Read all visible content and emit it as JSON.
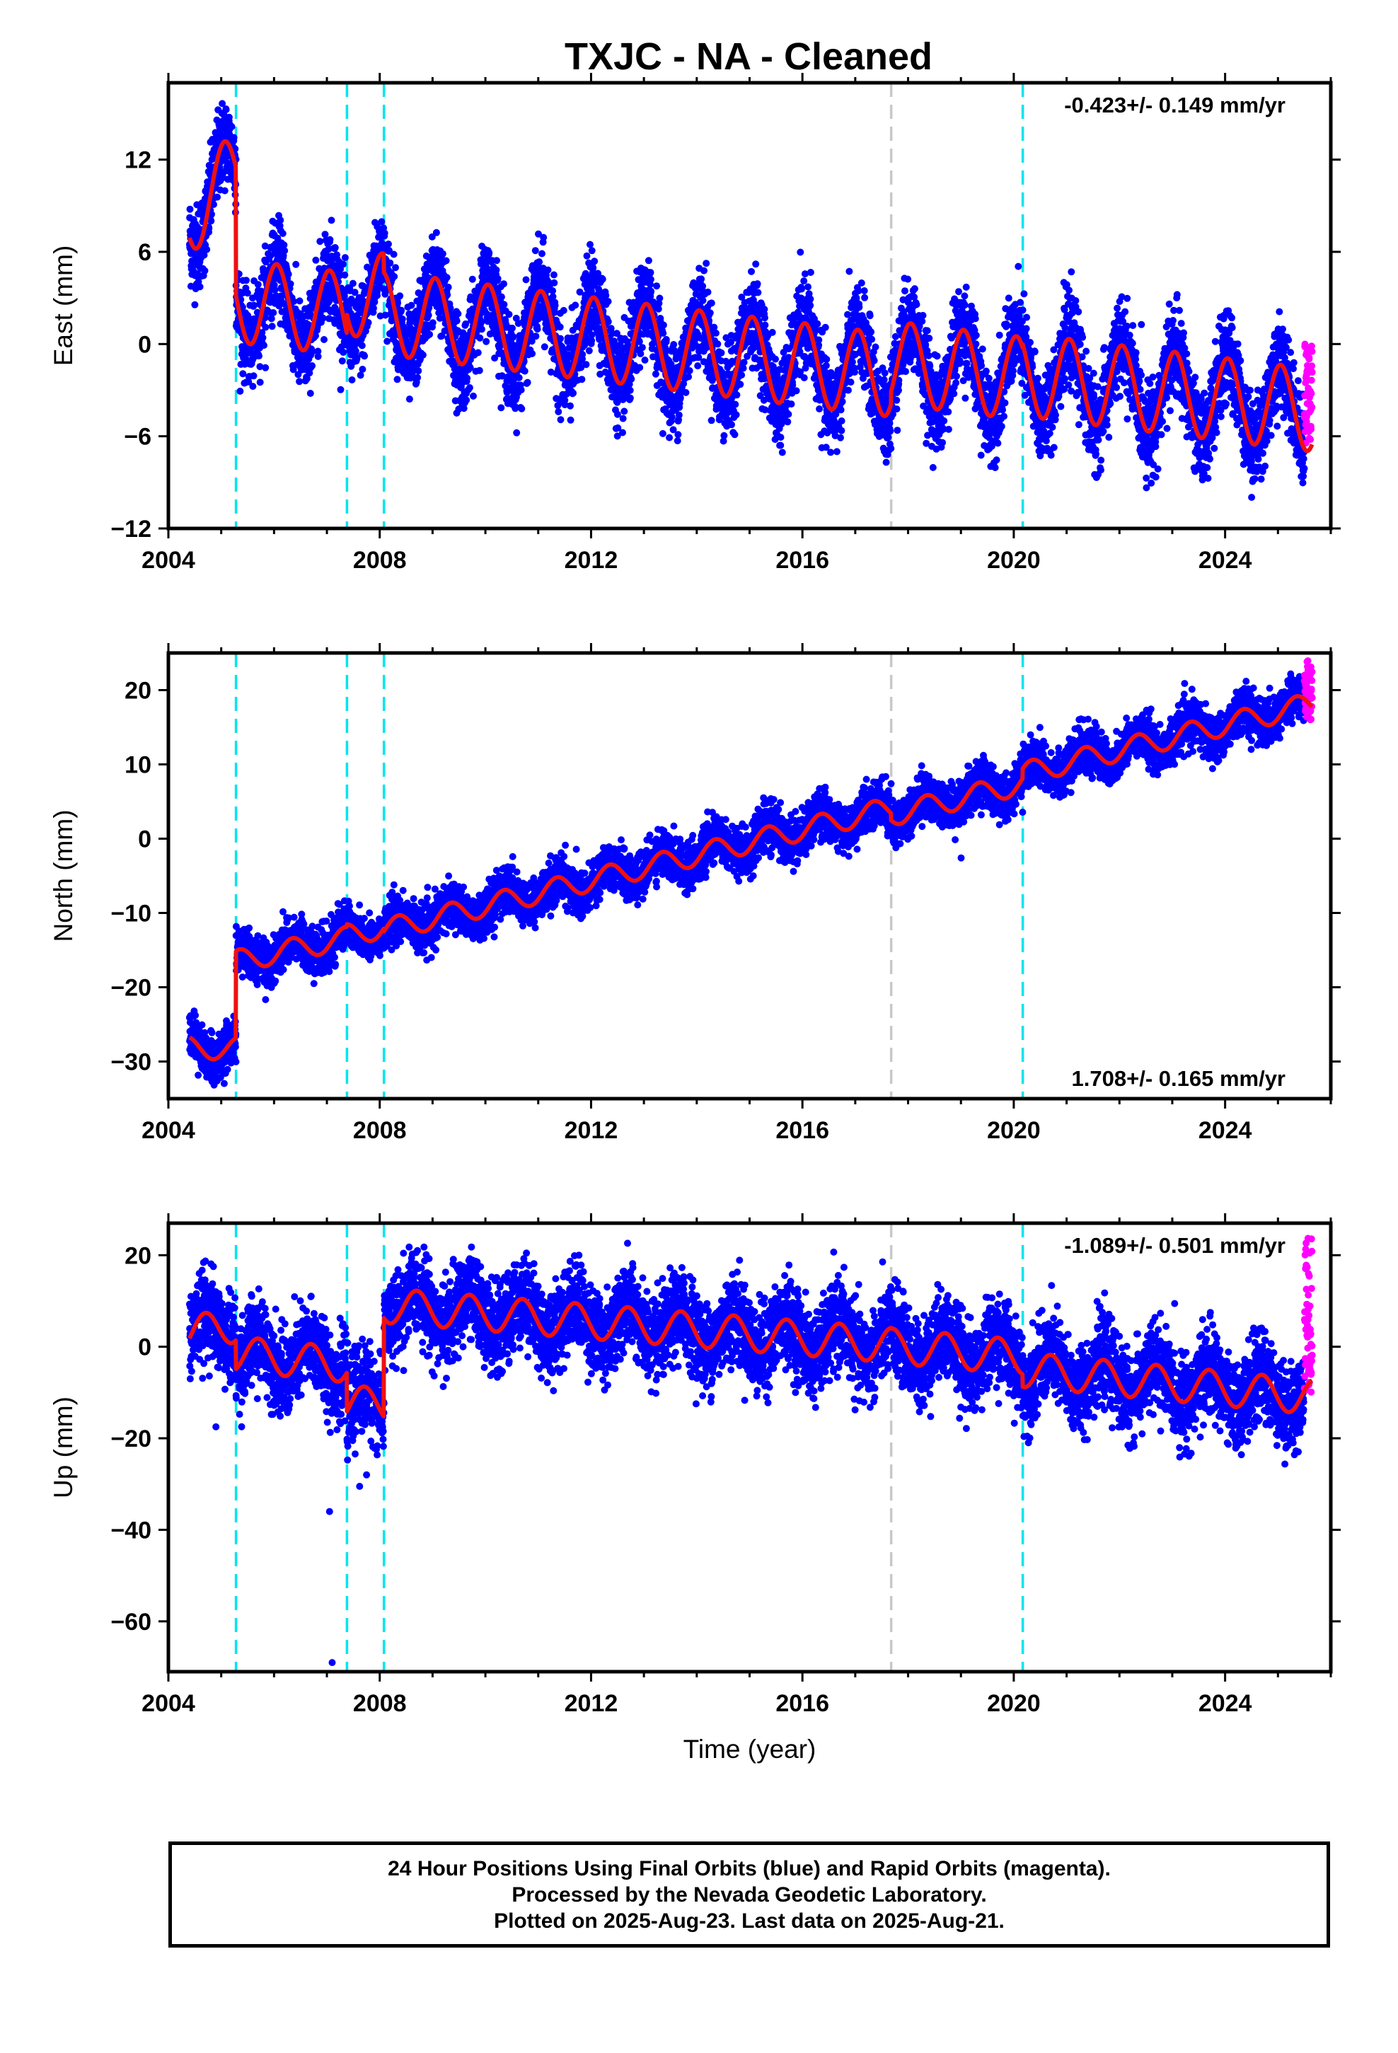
{
  "title": "TXJC  - NA - Cleaned",
  "colors": {
    "final_orbits": "#0000ff",
    "rapid_orbits": "#ff00ff",
    "model": "#ee1111",
    "offset_equipment": "#00e5ee",
    "offset_other": "#c8c8c8"
  },
  "chart_data": [
    {
      "type": "scatter",
      "component": "East",
      "ylabel": "East (mm)",
      "xlabel": "",
      "xlim": [
        2004.0,
        2026.0
      ],
      "ylim": [
        -12,
        17
      ],
      "xticks": [
        2004,
        2008,
        2012,
        2016,
        2020,
        2024
      ],
      "yticks": [
        -12,
        -6,
        0,
        6,
        12
      ],
      "rate_text": "-0.423+/- 0.149 mm/yr",
      "rate_position": "top-right",
      "offset_lines": [
        {
          "year": 2005.28,
          "kind": "equipment"
        },
        {
          "year": 2007.38,
          "kind": "equipment"
        },
        {
          "year": 2008.08,
          "kind": "equipment"
        },
        {
          "year": 2017.68,
          "kind": "other"
        },
        {
          "year": 2020.17,
          "kind": "equipment"
        }
      ],
      "model_trend": [
        {
          "start": 2004.4,
          "end": 2005.28,
          "value_at_start": 8.5,
          "rate": 3.0
        },
        {
          "start": 2005.28,
          "end": 2007.38,
          "value_at_start": 2.8,
          "rate": -0.4
        },
        {
          "start": 2007.38,
          "end": 2008.08,
          "value_at_start": 3.2,
          "rate": 0.0
        },
        {
          "start": 2008.08,
          "end": 2017.68,
          "value_at_start": 2.0,
          "rate": -0.42
        },
        {
          "start": 2017.68,
          "end": 2020.17,
          "value_at_start": -1.2,
          "rate": -0.42
        },
        {
          "start": 2020.17,
          "end": 2025.65,
          "value_at_start": -2.0,
          "rate": -0.42
        }
      ],
      "annual_amplitude": 2.7,
      "annual_peak_phase": 0.05,
      "scatter_sd": 1.4,
      "rapid_segment": {
        "start": 2025.5,
        "end": 2025.65,
        "ymin": -6.5,
        "ymax": 0
      }
    },
    {
      "type": "scatter",
      "component": "North",
      "ylabel": "North (mm)",
      "xlabel": "",
      "xlim": [
        2004.0,
        2026.0
      ],
      "ylim": [
        -35,
        25
      ],
      "xticks": [
        2004,
        2008,
        2012,
        2016,
        2020,
        2024
      ],
      "yticks": [
        -30,
        -20,
        -10,
        0,
        10,
        20
      ],
      "rate_text": "1.708+/- 0.165 mm/yr",
      "rate_position": "bottom-right",
      "offset_lines": [
        {
          "year": 2005.28,
          "kind": "equipment"
        },
        {
          "year": 2007.38,
          "kind": "equipment"
        },
        {
          "year": 2008.08,
          "kind": "equipment"
        },
        {
          "year": 2017.68,
          "kind": "other"
        },
        {
          "year": 2020.17,
          "kind": "equipment"
        }
      ],
      "model_trend": [
        {
          "start": 2004.4,
          "end": 2005.28,
          "value_at_start": -28.2,
          "rate": 0.0
        },
        {
          "start": 2005.28,
          "end": 2007.38,
          "value_at_start": -16.5,
          "rate": 1.5
        },
        {
          "start": 2007.38,
          "end": 2008.08,
          "value_at_start": -13.0,
          "rate": 1.6
        },
        {
          "start": 2008.08,
          "end": 2017.68,
          "value_at_start": -12.3,
          "rate": 1.71
        },
        {
          "start": 2017.68,
          "end": 2020.17,
          "value_at_start": 3.2,
          "rate": 1.71
        },
        {
          "start": 2020.17,
          "end": 2025.65,
          "value_at_start": 8.8,
          "rate": 1.71
        }
      ],
      "annual_amplitude": 1.5,
      "annual_peak_phase": 0.35,
      "scatter_sd": 1.5,
      "rapid_segment": {
        "start": 2025.5,
        "end": 2025.65,
        "ymin": 16,
        "ymax": 24
      }
    },
    {
      "type": "scatter",
      "component": "Up",
      "ylabel": "Up (mm)",
      "xlabel": "Time (year)",
      "xlim": [
        2004.0,
        2026.0
      ],
      "ylim": [
        -71,
        27
      ],
      "xticks": [
        2004,
        2008,
        2012,
        2016,
        2020,
        2024
      ],
      "yticks": [
        -60,
        -40,
        -20,
        0,
        20
      ],
      "rate_text": "-1.089+/- 0.501 mm/yr",
      "rate_position": "top-right",
      "offset_lines": [
        {
          "year": 2005.28,
          "kind": "equipment"
        },
        {
          "year": 2007.38,
          "kind": "equipment"
        },
        {
          "year": 2008.08,
          "kind": "equipment"
        },
        {
          "year": 2017.68,
          "kind": "other"
        },
        {
          "year": 2020.17,
          "kind": "equipment"
        }
      ],
      "model_trend": [
        {
          "start": 2004.4,
          "end": 2005.28,
          "value_at_start": 3.0,
          "rate": 2.0
        },
        {
          "start": 2005.28,
          "end": 2007.38,
          "value_at_start": -1.5,
          "rate": -1.2
        },
        {
          "start": 2007.38,
          "end": 2008.08,
          "value_at_start": -12.5,
          "rate": 0.0
        },
        {
          "start": 2008.08,
          "end": 2017.68,
          "value_at_start": 9.0,
          "rate": -0.9
        },
        {
          "start": 2017.68,
          "end": 2020.17,
          "value_at_start": 0.2,
          "rate": -1.0
        },
        {
          "start": 2020.17,
          "end": 2025.65,
          "value_at_start": -5.0,
          "rate": -1.09
        }
      ],
      "annual_amplitude": 3.8,
      "annual_peak_phase": 0.7,
      "scatter_sd": 4.6,
      "rapid_segment": {
        "start": 2025.5,
        "end": 2025.65,
        "ymin": -12,
        "ymax": 24
      },
      "outliers": [
        [
          2007.05,
          -36
        ],
        [
          2007.1,
          -69
        ],
        [
          2004.9,
          -17.5
        ],
        [
          2007.62,
          -30.5
        ],
        [
          2007.75,
          -28
        ]
      ]
    }
  ],
  "footer": {
    "line1": "24 Hour Positions Using Final Orbits (blue) and Rapid Orbits (magenta).",
    "line2": "Processed by the Nevada Geodetic Laboratory.",
    "line3": "Plotted on 2025-Aug-23. Last data on 2025-Aug-21."
  }
}
